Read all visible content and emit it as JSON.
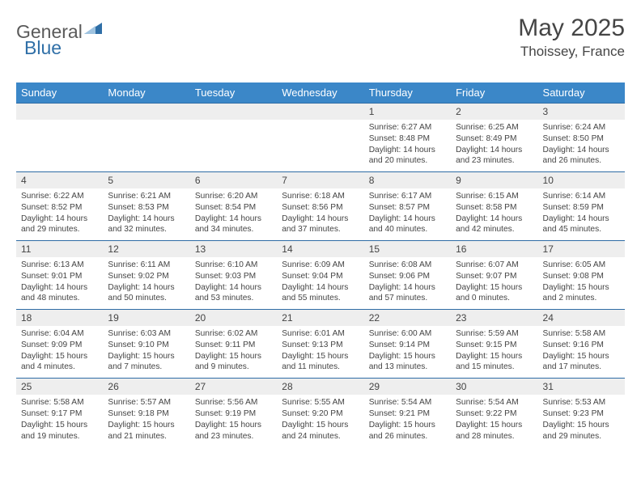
{
  "brand": {
    "part1": "General",
    "part2": "Blue"
  },
  "title": "May 2025",
  "location": "Thoissey, France",
  "colors": {
    "header_bg": "#3b87c8",
    "header_text": "#ffffff",
    "daynum_bg": "#eeeeee",
    "rule": "#2e6ca5",
    "brand_gray": "#5a5a5a",
    "brand_blue": "#2f6fa7",
    "text": "#444444",
    "background": "#ffffff"
  },
  "days_of_week": [
    "Sunday",
    "Monday",
    "Tuesday",
    "Wednesday",
    "Thursday",
    "Friday",
    "Saturday"
  ],
  "weeks": [
    {
      "nums": [
        "",
        "",
        "",
        "",
        "1",
        "2",
        "3"
      ],
      "cells": [
        {
          "empty": true
        },
        {
          "empty": true
        },
        {
          "empty": true
        },
        {
          "empty": true
        },
        {
          "sunrise": "Sunrise: 6:27 AM",
          "sunset": "Sunset: 8:48 PM",
          "daylight": "Daylight: 14 hours and 20 minutes."
        },
        {
          "sunrise": "Sunrise: 6:25 AM",
          "sunset": "Sunset: 8:49 PM",
          "daylight": "Daylight: 14 hours and 23 minutes."
        },
        {
          "sunrise": "Sunrise: 6:24 AM",
          "sunset": "Sunset: 8:50 PM",
          "daylight": "Daylight: 14 hours and 26 minutes."
        }
      ]
    },
    {
      "nums": [
        "4",
        "5",
        "6",
        "7",
        "8",
        "9",
        "10"
      ],
      "cells": [
        {
          "sunrise": "Sunrise: 6:22 AM",
          "sunset": "Sunset: 8:52 PM",
          "daylight": "Daylight: 14 hours and 29 minutes."
        },
        {
          "sunrise": "Sunrise: 6:21 AM",
          "sunset": "Sunset: 8:53 PM",
          "daylight": "Daylight: 14 hours and 32 minutes."
        },
        {
          "sunrise": "Sunrise: 6:20 AM",
          "sunset": "Sunset: 8:54 PM",
          "daylight": "Daylight: 14 hours and 34 minutes."
        },
        {
          "sunrise": "Sunrise: 6:18 AM",
          "sunset": "Sunset: 8:56 PM",
          "daylight": "Daylight: 14 hours and 37 minutes."
        },
        {
          "sunrise": "Sunrise: 6:17 AM",
          "sunset": "Sunset: 8:57 PM",
          "daylight": "Daylight: 14 hours and 40 minutes."
        },
        {
          "sunrise": "Sunrise: 6:15 AM",
          "sunset": "Sunset: 8:58 PM",
          "daylight": "Daylight: 14 hours and 42 minutes."
        },
        {
          "sunrise": "Sunrise: 6:14 AM",
          "sunset": "Sunset: 8:59 PM",
          "daylight": "Daylight: 14 hours and 45 minutes."
        }
      ]
    },
    {
      "nums": [
        "11",
        "12",
        "13",
        "14",
        "15",
        "16",
        "17"
      ],
      "cells": [
        {
          "sunrise": "Sunrise: 6:13 AM",
          "sunset": "Sunset: 9:01 PM",
          "daylight": "Daylight: 14 hours and 48 minutes."
        },
        {
          "sunrise": "Sunrise: 6:11 AM",
          "sunset": "Sunset: 9:02 PM",
          "daylight": "Daylight: 14 hours and 50 minutes."
        },
        {
          "sunrise": "Sunrise: 6:10 AM",
          "sunset": "Sunset: 9:03 PM",
          "daylight": "Daylight: 14 hours and 53 minutes."
        },
        {
          "sunrise": "Sunrise: 6:09 AM",
          "sunset": "Sunset: 9:04 PM",
          "daylight": "Daylight: 14 hours and 55 minutes."
        },
        {
          "sunrise": "Sunrise: 6:08 AM",
          "sunset": "Sunset: 9:06 PM",
          "daylight": "Daylight: 14 hours and 57 minutes."
        },
        {
          "sunrise": "Sunrise: 6:07 AM",
          "sunset": "Sunset: 9:07 PM",
          "daylight": "Daylight: 15 hours and 0 minutes."
        },
        {
          "sunrise": "Sunrise: 6:05 AM",
          "sunset": "Sunset: 9:08 PM",
          "daylight": "Daylight: 15 hours and 2 minutes."
        }
      ]
    },
    {
      "nums": [
        "18",
        "19",
        "20",
        "21",
        "22",
        "23",
        "24"
      ],
      "cells": [
        {
          "sunrise": "Sunrise: 6:04 AM",
          "sunset": "Sunset: 9:09 PM",
          "daylight": "Daylight: 15 hours and 4 minutes."
        },
        {
          "sunrise": "Sunrise: 6:03 AM",
          "sunset": "Sunset: 9:10 PM",
          "daylight": "Daylight: 15 hours and 7 minutes."
        },
        {
          "sunrise": "Sunrise: 6:02 AM",
          "sunset": "Sunset: 9:11 PM",
          "daylight": "Daylight: 15 hours and 9 minutes."
        },
        {
          "sunrise": "Sunrise: 6:01 AM",
          "sunset": "Sunset: 9:13 PM",
          "daylight": "Daylight: 15 hours and 11 minutes."
        },
        {
          "sunrise": "Sunrise: 6:00 AM",
          "sunset": "Sunset: 9:14 PM",
          "daylight": "Daylight: 15 hours and 13 minutes."
        },
        {
          "sunrise": "Sunrise: 5:59 AM",
          "sunset": "Sunset: 9:15 PM",
          "daylight": "Daylight: 15 hours and 15 minutes."
        },
        {
          "sunrise": "Sunrise: 5:58 AM",
          "sunset": "Sunset: 9:16 PM",
          "daylight": "Daylight: 15 hours and 17 minutes."
        }
      ]
    },
    {
      "nums": [
        "25",
        "26",
        "27",
        "28",
        "29",
        "30",
        "31"
      ],
      "cells": [
        {
          "sunrise": "Sunrise: 5:58 AM",
          "sunset": "Sunset: 9:17 PM",
          "daylight": "Daylight: 15 hours and 19 minutes."
        },
        {
          "sunrise": "Sunrise: 5:57 AM",
          "sunset": "Sunset: 9:18 PM",
          "daylight": "Daylight: 15 hours and 21 minutes."
        },
        {
          "sunrise": "Sunrise: 5:56 AM",
          "sunset": "Sunset: 9:19 PM",
          "daylight": "Daylight: 15 hours and 23 minutes."
        },
        {
          "sunrise": "Sunrise: 5:55 AM",
          "sunset": "Sunset: 9:20 PM",
          "daylight": "Daylight: 15 hours and 24 minutes."
        },
        {
          "sunrise": "Sunrise: 5:54 AM",
          "sunset": "Sunset: 9:21 PM",
          "daylight": "Daylight: 15 hours and 26 minutes."
        },
        {
          "sunrise": "Sunrise: 5:54 AM",
          "sunset": "Sunset: 9:22 PM",
          "daylight": "Daylight: 15 hours and 28 minutes."
        },
        {
          "sunrise": "Sunrise: 5:53 AM",
          "sunset": "Sunset: 9:23 PM",
          "daylight": "Daylight: 15 hours and 29 minutes."
        }
      ]
    }
  ]
}
